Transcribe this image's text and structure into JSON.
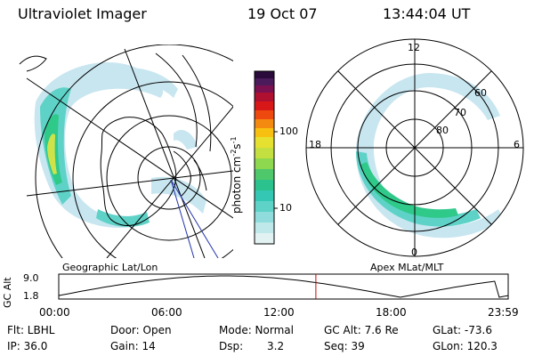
{
  "header": {
    "instrument": "Ultraviolet Imager",
    "date": "19 Oct 07",
    "time": "13:44:04 UT"
  },
  "colorbar": {
    "label_html": "photon cm",
    "unit_main": "photon cm",
    "sup1": "-2",
    "mid": "s",
    "sup2": "-1",
    "ticks": [
      "100",
      "10"
    ]
  },
  "left_panel": {
    "caption": "Geographic Lat/Lon"
  },
  "right_panel": {
    "caption": "Apex MLat/MLT",
    "mlt_labels": {
      "top": "12",
      "left": "18",
      "right": "6",
      "bottom": "0"
    },
    "lat_labels": [
      "60",
      "70",
      "80"
    ]
  },
  "timeline": {
    "ylabel": "GC Alt",
    "y_ticks": [
      "9.0",
      "1.8"
    ],
    "x_ticks": [
      "00:00",
      "06:00",
      "12:00",
      "18:00",
      "23:59"
    ],
    "marker_time_hours": 13.73
  },
  "footer": {
    "row1": {
      "filter": "Flt: LBHL",
      "door": "Door: Open",
      "mode": "Mode: Normal",
      "gcalt": "GC Alt: 7.6 Re",
      "glat": "GLat: -73.6"
    },
    "row2": {
      "ip": "IP: 36.0",
      "gain": "Gain: 14",
      "dsp_label": "Dsp:",
      "dsp_value": "3.2",
      "seq": "Seq: 39",
      "glon": "GLon: 120.3"
    }
  },
  "colors": {
    "aurora_light": "#c8e6f0",
    "aurora_mid": "#5fd2c8",
    "aurora_green": "#2fc98a",
    "aurora_yellow": "#cfe24a",
    "marker": "#cc0000"
  }
}
